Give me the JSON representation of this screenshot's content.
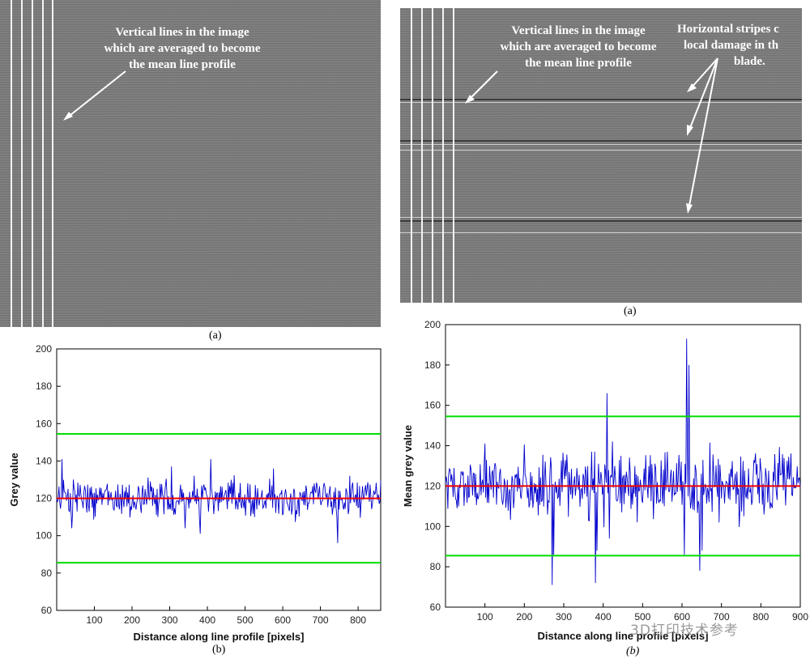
{
  "left_image": {
    "annotation_lines": [
      "Vertical lines in the image",
      "which are averaged to become",
      "the mean line profile"
    ],
    "caption": "(a)"
  },
  "right_image": {
    "annotation_lines": [
      "Vertical lines in the image",
      "which are averaged to become",
      "the mean line profile"
    ],
    "damage_annotation_lines": [
      "Horizontal stripes c",
      "local damage in th",
      "blade."
    ],
    "caption": "(a)"
  },
  "watermark": "3D打印技术参考",
  "chart_data": [
    {
      "type": "line",
      "title": "",
      "xlabel": "Distance along line profile [pixels]",
      "ylabel": "Grey value",
      "caption": "(b)",
      "xlim": [
        0,
        860
      ],
      "ylim": [
        60,
        200
      ],
      "xticks": [
        100,
        200,
        300,
        400,
        500,
        600,
        700,
        800
      ],
      "yticks": [
        60,
        80,
        100,
        120,
        140,
        160,
        180,
        200
      ],
      "grid": false,
      "series": [
        {
          "color": "#0000cc",
          "x": [
            0,
            860
          ],
          "y_mean": 120,
          "noise_sd": 5,
          "spikes": [
            [
              15,
              141
            ],
            [
              40,
              104
            ],
            [
              305,
              137
            ],
            [
              340,
              104
            ],
            [
              380,
              101
            ],
            [
              408,
              141
            ],
            [
              575,
              136
            ],
            [
              745,
              96
            ]
          ]
        }
      ],
      "reference_lines": [
        {
          "y": 154.5,
          "color": "#00dd00"
        },
        {
          "y": 120,
          "color": "#ee0000"
        },
        {
          "y": 85.5,
          "color": "#00dd00"
        }
      ]
    },
    {
      "type": "line",
      "title": "",
      "xlabel": "Distance along line profile [pixels]",
      "ylabel": "Mean grey value",
      "caption": "(b)",
      "xlim": [
        0,
        900
      ],
      "ylim": [
        60,
        200
      ],
      "xticks": [
        100,
        200,
        300,
        400,
        500,
        600,
        700,
        800,
        900
      ],
      "yticks": [
        60,
        80,
        100,
        120,
        140,
        160,
        180,
        200
      ],
      "grid": false,
      "series": [
        {
          "color": "#0000cc",
          "x": [
            0,
            900
          ],
          "y_mean": 120,
          "noise_sd": 8,
          "spikes": [
            [
              270,
              71
            ],
            [
              275,
              86
            ],
            [
              380,
              72
            ],
            [
              385,
              88
            ],
            [
              410,
              166
            ],
            [
              415,
              94
            ],
            [
              605,
              86
            ],
            [
              612,
              193
            ],
            [
              618,
              180
            ],
            [
              645,
              78
            ],
            [
              650,
              88
            ]
          ]
        }
      ],
      "reference_lines": [
        {
          "y": 154.5,
          "color": "#00dd00"
        },
        {
          "y": 120,
          "color": "#ee0000"
        },
        {
          "y": 85.5,
          "color": "#00dd00"
        }
      ]
    }
  ]
}
